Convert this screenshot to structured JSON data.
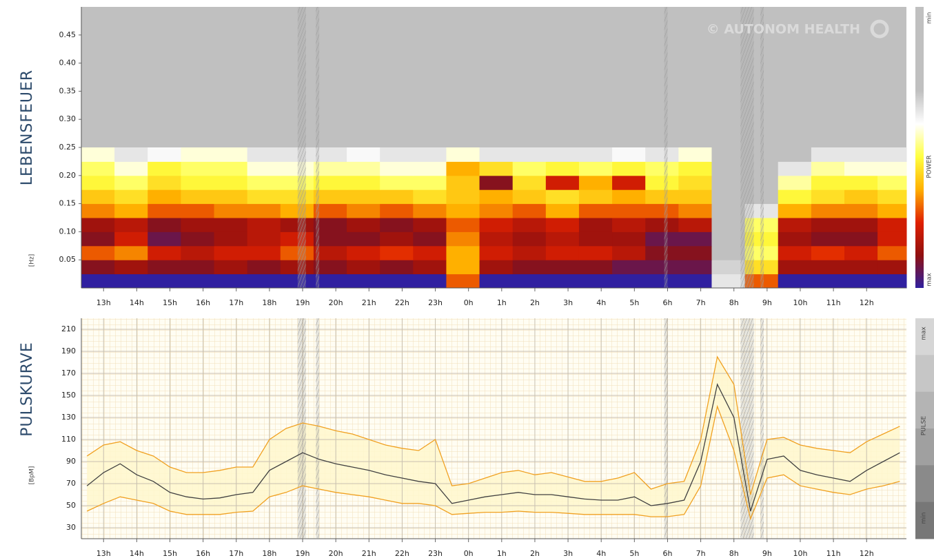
{
  "chart_data": [
    {
      "type": "heatmap",
      "title": "LEBENSFEUER",
      "ylabel": "[Hz]",
      "watermark": "© AUTONOM HEALTH",
      "colorbar_labels": [
        "min",
        "POWER",
        "max"
      ],
      "colorscale": [
        "#c0c0c0",
        "#ffffff",
        "#ffff40",
        "#ffb000",
        "#e02000",
        "#901010",
        "#3020a0"
      ],
      "xlim": [
        0.33,
        25.2
      ],
      "ylim": [
        0,
        0.5
      ],
      "xticks": [
        {
          "value": 1,
          "label": "13h"
        },
        {
          "value": 2,
          "label": "14h"
        },
        {
          "value": 3,
          "label": "15h"
        },
        {
          "value": 4,
          "label": "16h"
        },
        {
          "value": 5,
          "label": "17h"
        },
        {
          "value": 6,
          "label": "18h"
        },
        {
          "value": 7,
          "label": "19h"
        },
        {
          "value": 8,
          "label": "20h"
        },
        {
          "value": 9,
          "label": "21h"
        },
        {
          "value": 10,
          "label": "22h"
        },
        {
          "value": 11,
          "label": "23h"
        },
        {
          "value": 12,
          "label": "0h"
        },
        {
          "value": 13,
          "label": "1h"
        },
        {
          "value": 14,
          "label": "2h"
        },
        {
          "value": 15,
          "label": "3h"
        },
        {
          "value": 16,
          "label": "4h"
        },
        {
          "value": 17,
          "label": "5h"
        },
        {
          "value": 18,
          "label": "6h"
        },
        {
          "value": 19,
          "label": "7h"
        },
        {
          "value": 20,
          "label": "8h"
        },
        {
          "value": 21,
          "label": "9h"
        },
        {
          "value": 22,
          "label": "10h"
        },
        {
          "value": 23,
          "label": "11h"
        },
        {
          "value": 24,
          "label": "12h"
        }
      ],
      "yticks": [
        0.05,
        {
          "value": 0.1,
          "label": "0.10"
        },
        0.15,
        {
          "value": 0.2,
          "label": "0.20"
        },
        0.25,
        {
          "value": 0.3,
          "label": "0.30"
        },
        0.35,
        {
          "value": 0.4,
          "label": "0.40"
        },
        0.45
      ],
      "x_bins": [
        0.33,
        1.33,
        2.33,
        3.33,
        4.33,
        5.33,
        6.33,
        7.33,
        8.33,
        9.33,
        10.33,
        11.33,
        12.33,
        13.33,
        14.33,
        15.33,
        16.33,
        17.33,
        18.33,
        19.33,
        20.33,
        21.33,
        22.33,
        23.33,
        24.33,
        25.2
      ],
      "y_bins": [
        0,
        0.025,
        0.05,
        0.075,
        0.1,
        0.125,
        0.15,
        0.175,
        0.2,
        0.225,
        0.25
      ],
      "z": [
        [
          1,
          1,
          1,
          1,
          1,
          1,
          1,
          1,
          1,
          1,
          1,
          0.6,
          1,
          1,
          1,
          1,
          1,
          1,
          1,
          0.1,
          0.6,
          1,
          1,
          1,
          1
        ],
        [
          0.85,
          0.8,
          0.85,
          0.85,
          0.8,
          0.85,
          0.8,
          0.85,
          0.8,
          0.85,
          0.8,
          0.5,
          0.8,
          0.85,
          0.85,
          0.85,
          0.9,
          0.9,
          0.9,
          0.05,
          0.4,
          0.8,
          0.8,
          0.8,
          0.8
        ],
        [
          0.6,
          0.55,
          0.7,
          0.75,
          0.7,
          0.7,
          0.6,
          0.75,
          0.7,
          0.65,
          0.7,
          0.5,
          0.7,
          0.75,
          0.7,
          0.7,
          0.75,
          0.85,
          0.85,
          0,
          0.3,
          0.7,
          0.65,
          0.7,
          0.6
        ],
        [
          0.85,
          0.7,
          0.9,
          0.85,
          0.8,
          0.75,
          0.7,
          0.85,
          0.85,
          0.8,
          0.85,
          0.55,
          0.75,
          0.8,
          0.75,
          0.8,
          0.8,
          0.9,
          0.9,
          0,
          0.35,
          0.8,
          0.85,
          0.85,
          0.7
        ],
        [
          0.8,
          0.75,
          0.85,
          0.8,
          0.8,
          0.75,
          0.8,
          0.85,
          0.8,
          0.85,
          0.8,
          0.6,
          0.7,
          0.75,
          0.7,
          0.8,
          0.75,
          0.8,
          0.75,
          0,
          0.3,
          0.75,
          0.8,
          0.8,
          0.7
        ],
        [
          0.55,
          0.5,
          0.6,
          0.6,
          0.55,
          0.55,
          0.5,
          0.6,
          0.55,
          0.6,
          0.55,
          0.5,
          0.55,
          0.6,
          0.5,
          0.6,
          0.6,
          0.6,
          0.55,
          0,
          0.1,
          0.5,
          0.55,
          0.55,
          0.5
        ],
        [
          0.45,
          0.4,
          0.5,
          0.45,
          0.45,
          0.4,
          0.4,
          0.45,
          0.45,
          0.45,
          0.4,
          0.45,
          0.5,
          0.45,
          0.4,
          0.45,
          0.5,
          0.45,
          0.45,
          0,
          0,
          0.35,
          0.4,
          0.45,
          0.4
        ],
        [
          0.35,
          0.3,
          0.4,
          0.35,
          0.35,
          0.3,
          0.3,
          0.35,
          0.35,
          0.3,
          0.3,
          0.45,
          0.85,
          0.4,
          0.7,
          0.5,
          0.7,
          0.35,
          0.4,
          0,
          0,
          0.25,
          0.35,
          0.35,
          0.3
        ],
        [
          0.3,
          0.2,
          0.35,
          0.3,
          0.3,
          0.2,
          0.2,
          0.25,
          0.25,
          0.2,
          0.2,
          0.5,
          0.4,
          0.3,
          0.35,
          0.3,
          0.35,
          0.3,
          0.35,
          0,
          0,
          0.1,
          0.25,
          0.2,
          0.2
        ],
        [
          0.2,
          0.1,
          0.15,
          0.2,
          0.2,
          0.1,
          0.1,
          0.1,
          0.15,
          0.1,
          0.1,
          0.2,
          0.1,
          0.1,
          0.1,
          0.1,
          0.15,
          0.1,
          0.2,
          0,
          0,
          0,
          0.1,
          0.1,
          0.1
        ]
      ]
    },
    {
      "type": "line",
      "title": "PULSKURVE",
      "ylabel": "[BpM]",
      "scale_labels": [
        "max",
        "PULSE",
        "min"
      ],
      "xlim": [
        0.33,
        25.2
      ],
      "ylim": [
        20,
        220
      ],
      "grid": true,
      "band_color": "#fff7cc",
      "xticks": [
        {
          "value": 1,
          "label": "13h"
        },
        {
          "value": 2,
          "label": "14h"
        },
        {
          "value": 3,
          "label": "15h"
        },
        {
          "value": 4,
          "label": "16h"
        },
        {
          "value": 5,
          "label": "17h"
        },
        {
          "value": 6,
          "label": "18h"
        },
        {
          "value": 7,
          "label": "19h"
        },
        {
          "value": 8,
          "label": "20h"
        },
        {
          "value": 9,
          "label": "21h"
        },
        {
          "value": 10,
          "label": "22h"
        },
        {
          "value": 11,
          "label": "23h"
        },
        {
          "value": 12,
          "label": "0h"
        },
        {
          "value": 13,
          "label": "1h"
        },
        {
          "value": 14,
          "label": "2h"
        },
        {
          "value": 15,
          "label": "3h"
        },
        {
          "value": 16,
          "label": "4h"
        },
        {
          "value": 17,
          "label": "5h"
        },
        {
          "value": 18,
          "label": "6h"
        },
        {
          "value": 19,
          "label": "7h"
        },
        {
          "value": 20,
          "label": "8h"
        },
        {
          "value": 21,
          "label": "9h"
        },
        {
          "value": 22,
          "label": "10h"
        },
        {
          "value": 23,
          "label": "11h"
        },
        {
          "value": 24,
          "label": "12h"
        }
      ],
      "yticks": [
        30,
        50,
        70,
        90,
        110,
        130,
        150,
        170,
        190,
        210
      ],
      "x": [
        0.5,
        1,
        1.5,
        2,
        2.5,
        3,
        3.5,
        4,
        4.5,
        5,
        5.5,
        6,
        6.5,
        7,
        7.5,
        8,
        8.5,
        9,
        9.5,
        10,
        10.5,
        11,
        11.5,
        12,
        12.5,
        13,
        13.5,
        14,
        14.5,
        15,
        15.5,
        16,
        16.5,
        17,
        17.5,
        18,
        18.5,
        19,
        19.5,
        20,
        20.5,
        21,
        21.5,
        22,
        22.5,
        23,
        23.5,
        24,
        24.5,
        25
      ],
      "series": [
        {
          "color": "#404040",
          "values": [
            68,
            80,
            88,
            78,
            72,
            62,
            58,
            56,
            57,
            60,
            62,
            82,
            90,
            98,
            92,
            88,
            85,
            82,
            78,
            75,
            72,
            70,
            52,
            55,
            58,
            60,
            62,
            60,
            60,
            58,
            56,
            55,
            55,
            58,
            50,
            52,
            55,
            90,
            160,
            130,
            45,
            92,
            95,
            82,
            78,
            75,
            72,
            82,
            90,
            98
          ]
        },
        {
          "color": "#f0a020",
          "values": [
            95,
            105,
            108,
            100,
            95,
            85,
            80,
            80,
            82,
            85,
            85,
            110,
            120,
            125,
            122,
            118,
            115,
            110,
            105,
            102,
            100,
            110,
            68,
            70,
            75,
            80,
            82,
            78,
            80,
            76,
            72,
            72,
            75,
            80,
            65,
            70,
            72,
            110,
            185,
            160,
            60,
            110,
            112,
            105,
            102,
            100,
            98,
            108,
            115,
            122
          ]
        },
        {
          "color": "#f0a020",
          "values": [
            45,
            52,
            58,
            55,
            52,
            45,
            42,
            42,
            42,
            44,
            45,
            58,
            62,
            68,
            65,
            62,
            60,
            58,
            55,
            52,
            52,
            50,
            42,
            43,
            44,
            44,
            45,
            44,
            44,
            43,
            42,
            42,
            42,
            42,
            40,
            40,
            42,
            68,
            140,
            100,
            38,
            75,
            78,
            68,
            65,
            62,
            60,
            65,
            68,
            72
          ]
        }
      ]
    }
  ]
}
